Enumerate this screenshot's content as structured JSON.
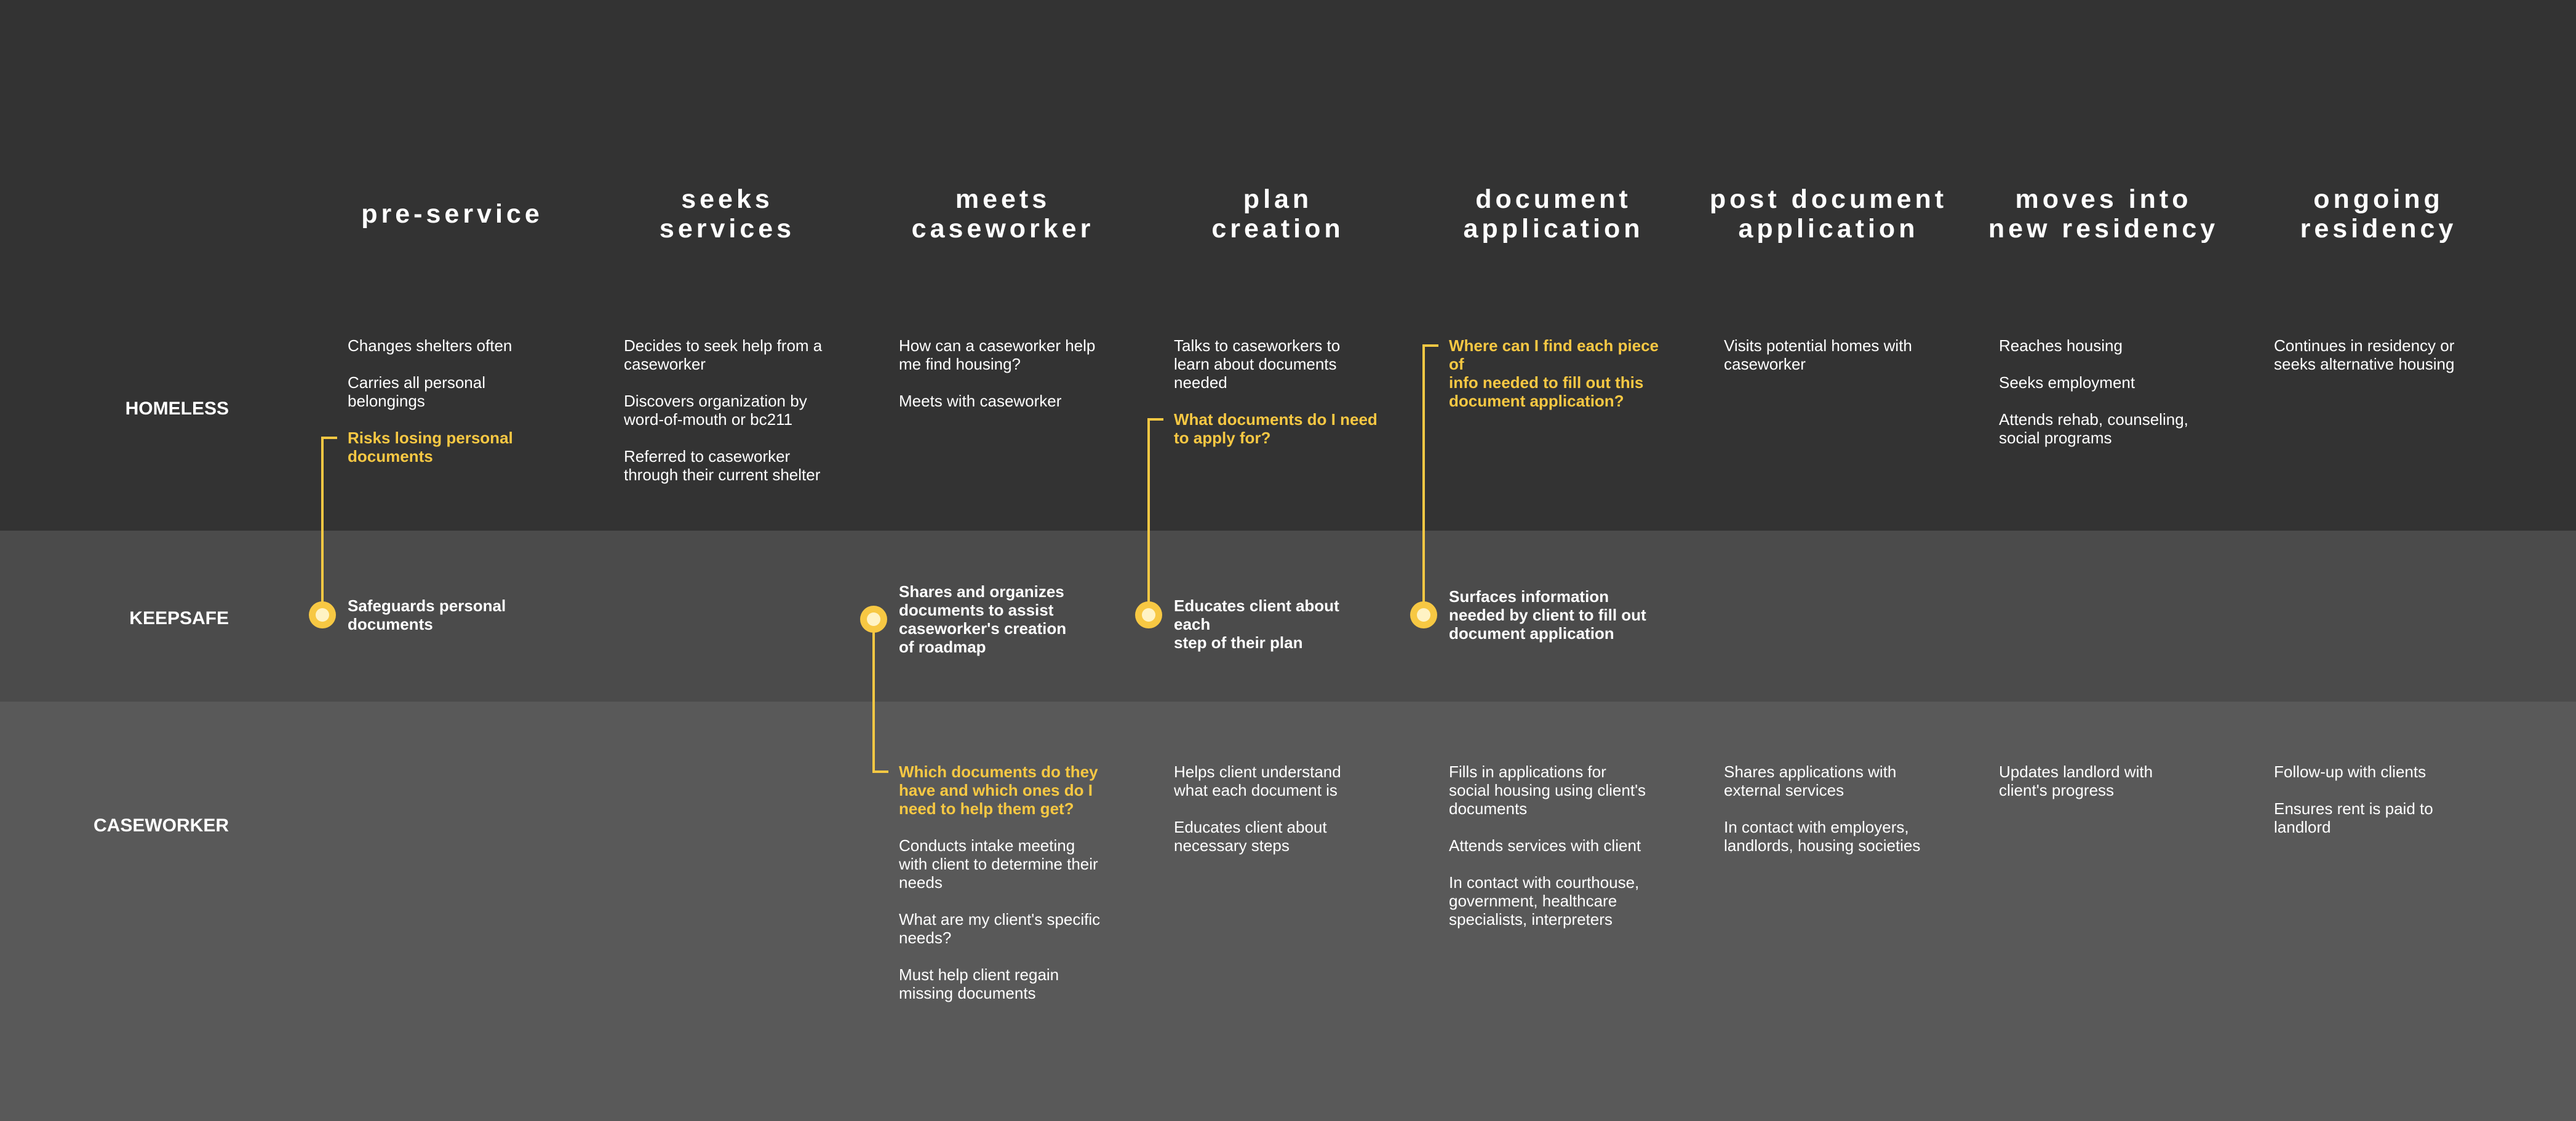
{
  "stages": [
    "pre-service",
    "seeks\nservices",
    "meets\ncaseworker",
    "plan\ncreation",
    "document\napplication",
    "post document\napplication",
    "moves into\nnew residency",
    "ongoing\nresidency"
  ],
  "lanes": {
    "homeless": "HOMELESS",
    "keepsafe": "KEEPSAFE",
    "caseworker": "CASEWORKER"
  },
  "homeless": [
    [
      {
        "text": "Changes shelters often"
      },
      {
        "text": "Carries all personal\nbelongings"
      },
      {
        "text": "Risks losing personal\ndocuments",
        "highlight": true
      }
    ],
    [
      {
        "text": "Decides to seek help from a\ncaseworker"
      },
      {
        "text": "Discovers organization by\nword-of-mouth or bc211"
      },
      {
        "text": "Referred to caseworker\nthrough their current shelter"
      }
    ],
    [
      {
        "text": "How can a caseworker help\nme find housing?"
      },
      {
        "text": "Meets with caseworker"
      }
    ],
    [
      {
        "text": "Talks to caseworkers to\nlearn about documents\nneeded"
      },
      {
        "text": "What documents do I need\nto apply for?",
        "highlight": true
      }
    ],
    [
      {
        "text": "Where can I find each piece of\ninfo needed to fill out this\ndocument application?",
        "highlight": true
      }
    ],
    [
      {
        "text": "Visits potential homes with\ncaseworker"
      }
    ],
    [
      {
        "text": "Reaches housing"
      },
      {
        "text": "Seeks employment"
      },
      {
        "text": "Attends rehab, counseling,\nsocial programs"
      }
    ],
    [
      {
        "text": "Continues in residency or\nseeks alternative housing"
      }
    ]
  ],
  "keepsafe": [
    {
      "stage": 0,
      "text": "Safeguards personal\ndocuments"
    },
    {
      "stage": 2,
      "text": "Shares and organizes\ndocuments to assist\ncaseworker's creation\nof roadmap"
    },
    {
      "stage": 3,
      "text": "Educates client about each\nstep of their plan"
    },
    {
      "stage": 4,
      "text": "Surfaces information\nneeded by client to fill out\ndocument application"
    }
  ],
  "caseworker": [
    [],
    [],
    [
      {
        "text": "Which documents do they\nhave and which ones do I\nneed to help them get?",
        "highlight": true
      },
      {
        "text": "Conducts intake meeting\nwith client to determine their\nneeds"
      },
      {
        "text": "What are my client's specific\nneeds?"
      },
      {
        "text": "Must help client regain\nmissing documents"
      }
    ],
    [
      {
        "text": "Helps client understand\nwhat each document is"
      },
      {
        "text": "Educates client about\nnecessary steps"
      }
    ],
    [
      {
        "text": "Fills in applications for\nsocial housing using client's\ndocuments"
      },
      {
        "text": "Attends services with client"
      },
      {
        "text": "In contact with courthouse,\ngovernment, healthcare\nspecialists, interpreters"
      }
    ],
    [
      {
        "text": "Shares applications with\nexternal services"
      },
      {
        "text": "In contact with employers,\nlandlords, housing societies"
      }
    ],
    [
      {
        "text": "Updates landlord with\nclient's progress"
      }
    ],
    [
      {
        "text": "Follow-up with clients"
      },
      {
        "text": "Ensures rent is paid to\nlandlord"
      }
    ]
  ],
  "colors": {
    "highlight": "#f7c843",
    "homeless_band": "#333333",
    "keepsafe_band": "#4b4b4b",
    "caseworker_band": "#595959",
    "text": "#ffffff"
  }
}
